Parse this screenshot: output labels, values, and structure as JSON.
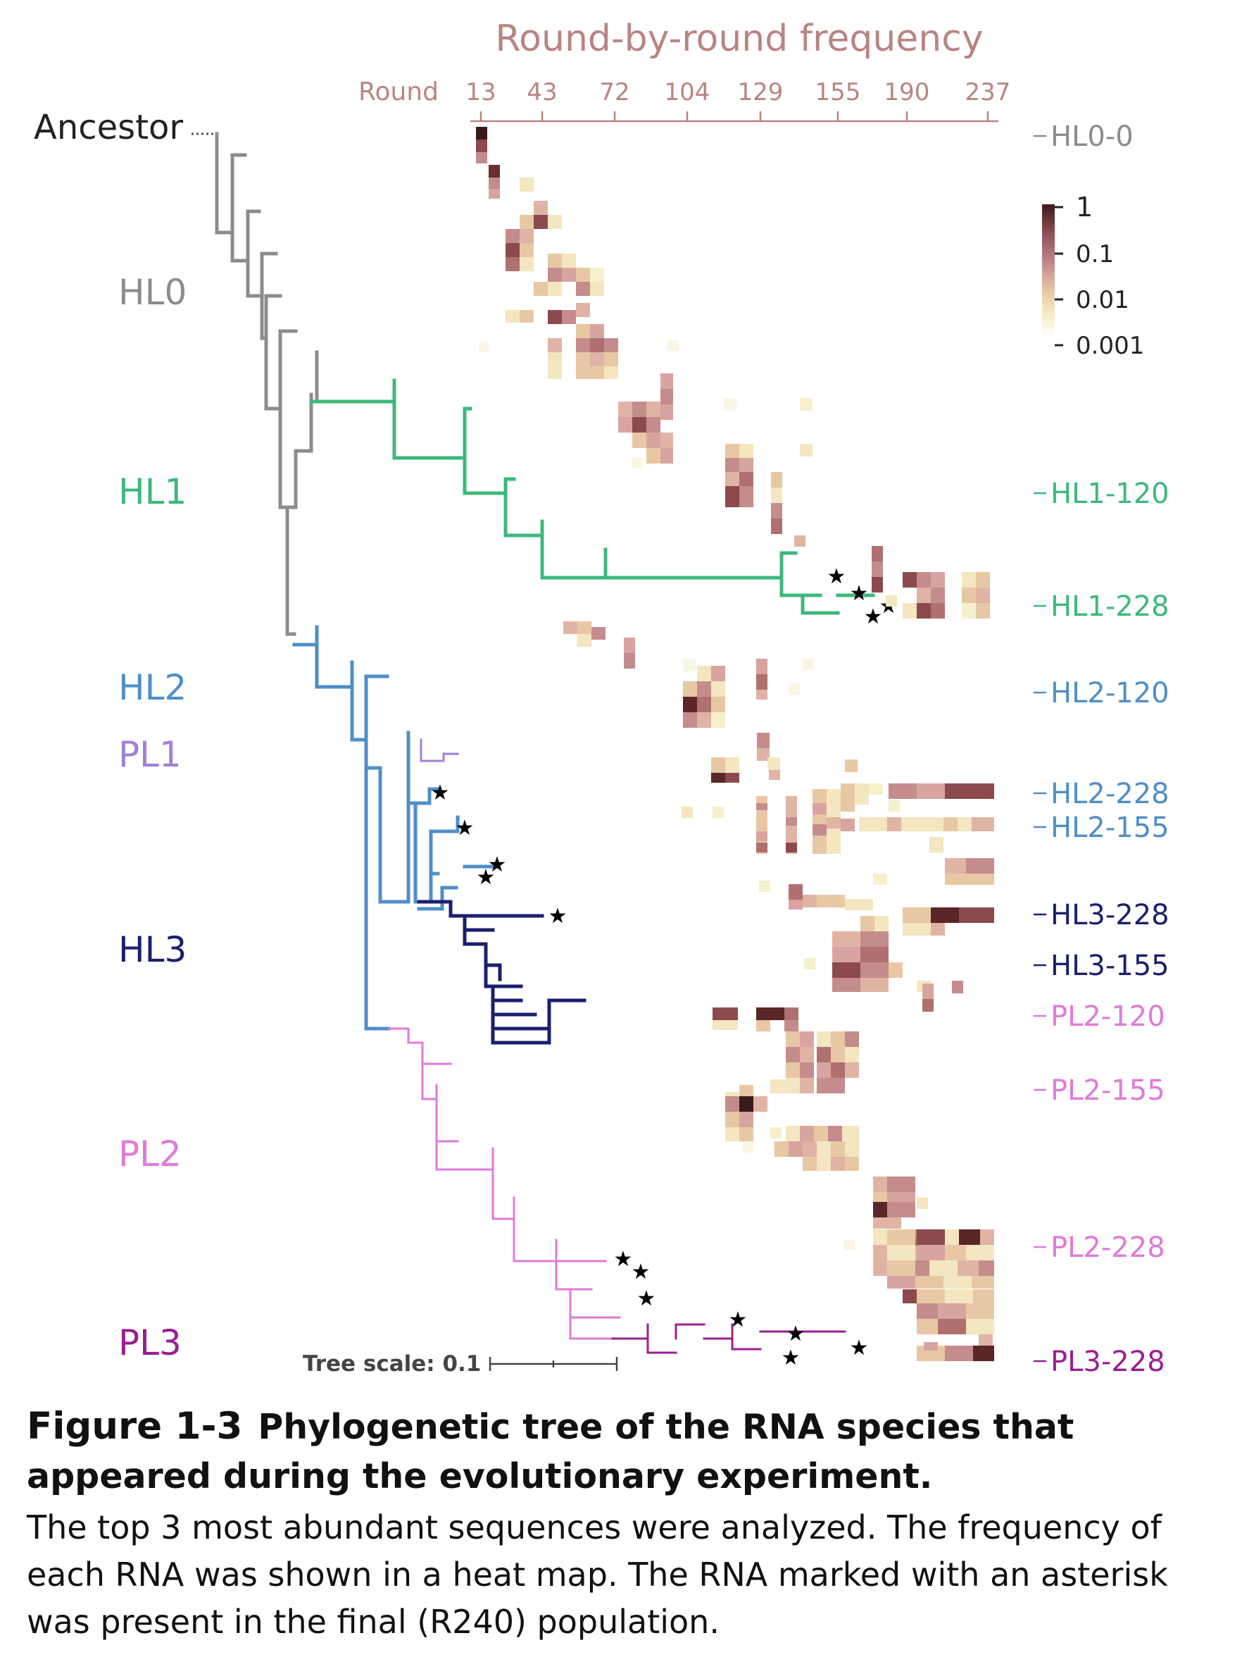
{
  "figure": {
    "heatmap_title": "Round-by-round frequency",
    "round_axis_label": "Round",
    "rounds": [
      "13",
      "43",
      "72",
      "104",
      "129",
      "155",
      "190",
      "237"
    ],
    "ancestor_label": "Ancestor",
    "colorbar": {
      "ticks": [
        "1",
        "0.1",
        "0.01",
        "0.001"
      ],
      "colors": [
        "#3a1a1c",
        "#8c4a4e",
        "#c48c8c",
        "#e8c8a4",
        "#f6f0cc",
        "#ffffff"
      ]
    },
    "lineages": [
      {
        "name": "HL0",
        "color": "#8c8c8c"
      },
      {
        "name": "HL1",
        "color": "#3db87c"
      },
      {
        "name": "HL2",
        "color": "#4f8fc8"
      },
      {
        "name": "PL1",
        "color": "#a37fd9"
      },
      {
        "name": "HL3",
        "color": "#1b1f6e"
      },
      {
        "name": "PL2",
        "color": "#e07ad8"
      },
      {
        "name": "PL3",
        "color": "#9b1e92"
      }
    ],
    "sequence_labels": [
      {
        "text": "HL0-0",
        "color": "#8c8c8c"
      },
      {
        "text": "HL1-120",
        "color": "#3db87c"
      },
      {
        "text": "HL1-228",
        "color": "#3db87c"
      },
      {
        "text": "HL2-120",
        "color": "#4f8fc8"
      },
      {
        "text": "HL2-228",
        "color": "#4f8fc8"
      },
      {
        "text": "HL2-155",
        "color": "#4f8fc8"
      },
      {
        "text": "HL3-228",
        "color": "#1b1f6e"
      },
      {
        "text": "HL3-155",
        "color": "#1b1f6e"
      },
      {
        "text": "PL2-120",
        "color": "#e07ad8"
      },
      {
        "text": "PL2-155",
        "color": "#e07ad8"
      },
      {
        "text": "PL2-228",
        "color": "#e07ad8"
      },
      {
        "text": "PL3-228",
        "color": "#9b1e92"
      }
    ],
    "tree_scale_label": "Tree scale: 0.1",
    "star_marker": "★"
  },
  "caption": {
    "number": "Figure 1-3",
    "title": "Phylogenetic tree of the RNA species that appeared during the evolutionary experiment.",
    "body": "The top 3 most abundant sequences were analyzed. The frequency of each RNA was shown in a heat map. The RNA marked with an asterisk was present in the final (R240) population."
  }
}
